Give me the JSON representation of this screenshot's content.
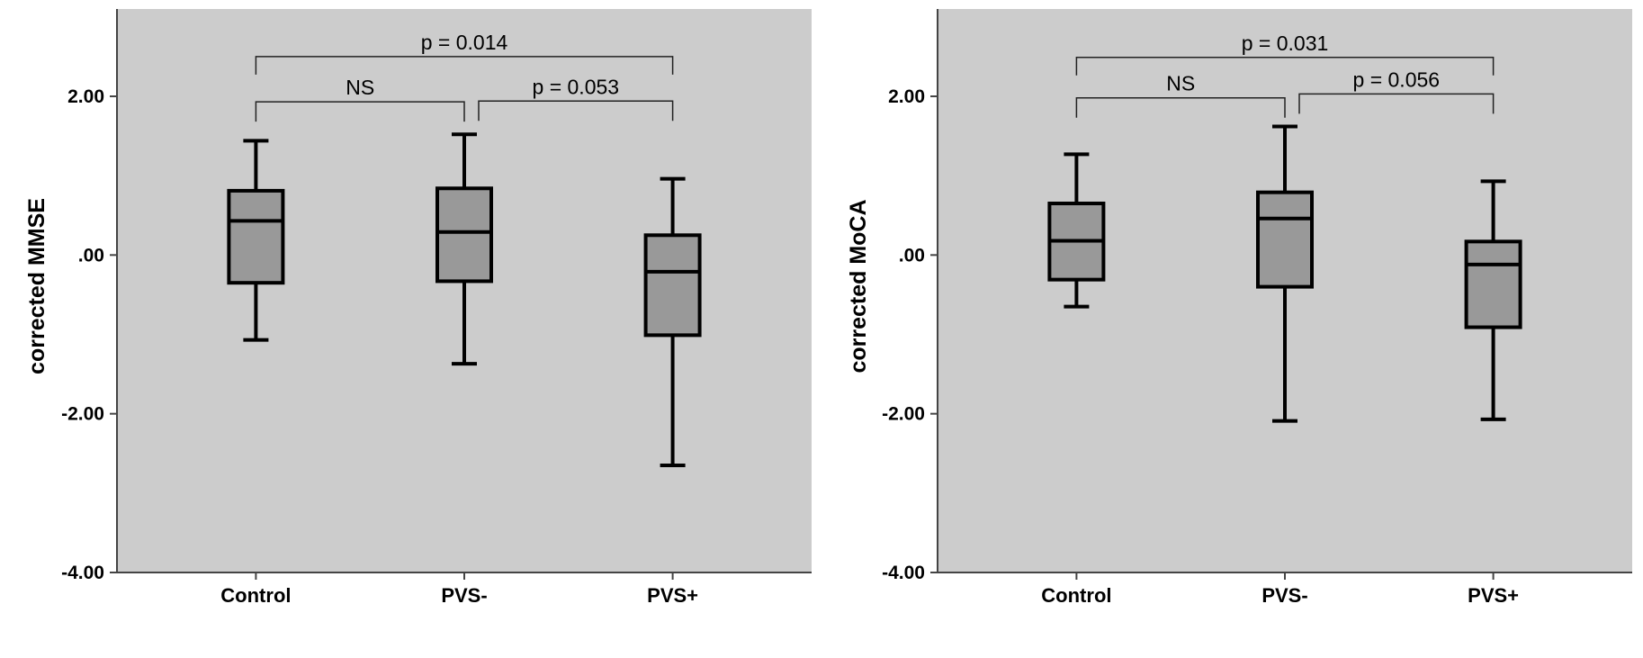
{
  "colors": {
    "plot_background": "#cccccc",
    "box_fill": "#999999",
    "stroke": "#000000",
    "axis": "#444444"
  },
  "chart_data": [
    {
      "type": "boxplot",
      "ylabel": "corrected MMSE",
      "xlabel": "",
      "categories": [
        "Control",
        "PVS-",
        "PVS+"
      ],
      "ylim": [
        -4,
        3.1
      ],
      "yticks": [
        2,
        0,
        -2,
        -4
      ],
      "ytick_labels": [
        "2.00",
        ".00",
        "-2.00",
        "-4.00"
      ],
      "boxes": [
        {
          "category": "Control",
          "whisker_low": -1.07,
          "q1": -0.35,
          "median": 0.43,
          "q3": 0.81,
          "whisker_high": 1.44
        },
        {
          "category": "PVS-",
          "whisker_low": -1.37,
          "q1": -0.33,
          "median": 0.29,
          "q3": 0.84,
          "whisker_high": 1.52
        },
        {
          "category": "PVS+",
          "whisker_low": -2.65,
          "q1": -1.01,
          "median": -0.21,
          "q3": 0.25,
          "whisker_high": 0.96
        }
      ],
      "comparisons": [
        {
          "from": "Control",
          "to": "PVS+",
          "label": "p = 0.014",
          "level": 2.5
        },
        {
          "from": "Control",
          "to": "PVS-",
          "label": "NS",
          "level": 1.93
        },
        {
          "from": "PVS-",
          "to": "PVS+",
          "label": "p = 0.053",
          "level": 1.94
        }
      ]
    },
    {
      "type": "boxplot",
      "ylabel": "corrected MoCA",
      "xlabel": "",
      "categories": [
        "Control",
        "PVS-",
        "PVS+"
      ],
      "ylim": [
        -4,
        3.1
      ],
      "yticks": [
        2,
        0,
        -2,
        -4
      ],
      "ytick_labels": [
        "2.00",
        ".00",
        "-2.00",
        "-4.00"
      ],
      "boxes": [
        {
          "category": "Control",
          "whisker_low": -0.65,
          "q1": -0.31,
          "median": 0.18,
          "q3": 0.65,
          "whisker_high": 1.27
        },
        {
          "category": "PVS-",
          "whisker_low": -2.09,
          "q1": -0.4,
          "median": 0.46,
          "q3": 0.79,
          "whisker_high": 1.62
        },
        {
          "category": "PVS+",
          "whisker_low": -2.07,
          "q1": -0.91,
          "median": -0.12,
          "q3": 0.17,
          "whisker_high": 0.93
        }
      ],
      "comparisons": [
        {
          "from": "Control",
          "to": "PVS+",
          "label": "p = 0.031",
          "level": 2.49
        },
        {
          "from": "Control",
          "to": "PVS-",
          "label": "NS",
          "level": 1.98
        },
        {
          "from": "PVS-",
          "to": "PVS+",
          "label": "p = 0.056",
          "level": 2.03
        }
      ]
    }
  ]
}
